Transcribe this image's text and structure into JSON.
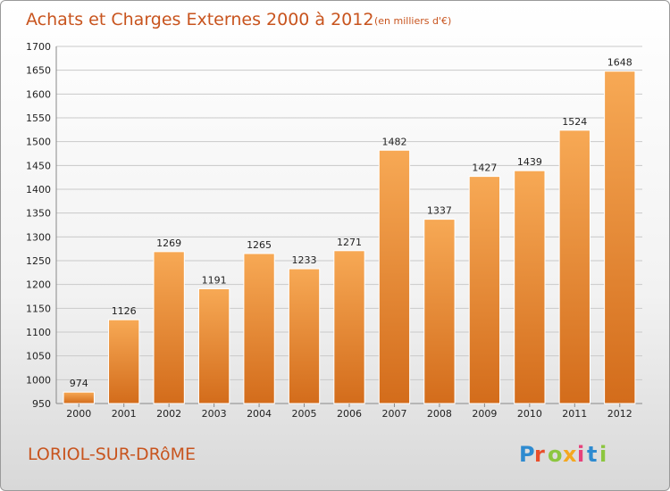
{
  "title": "Achats et Charges Externes 2000 à 2012",
  "subtitle": "(en milliers d'€)",
  "commune": "LORIOL-SUR-DRôME",
  "logo_text": "Proxiti",
  "colors": {
    "accent": "#c8541e",
    "bar_light": "#f6a24e",
    "bar_dark": "#d06b1a",
    "grid": "#c9c9c9"
  },
  "chart_data": {
    "type": "bar",
    "categories": [
      "2000",
      "2001",
      "2002",
      "2003",
      "2004",
      "2005",
      "2006",
      "2007",
      "2008",
      "2009",
      "2010",
      "2011",
      "2012"
    ],
    "values": [
      974,
      1126,
      1269,
      1191,
      1265,
      1233,
      1271,
      1482,
      1337,
      1427,
      1439,
      1524,
      1648
    ],
    "ylim": [
      950,
      1700
    ],
    "yticks": [
      950,
      1000,
      1050,
      1100,
      1150,
      1200,
      1250,
      1300,
      1350,
      1400,
      1450,
      1500,
      1550,
      1600,
      1650,
      1700
    ],
    "grid": true,
    "title": "Achats et Charges Externes 2000 à 2012",
    "xlabel": "",
    "ylabel": ""
  }
}
